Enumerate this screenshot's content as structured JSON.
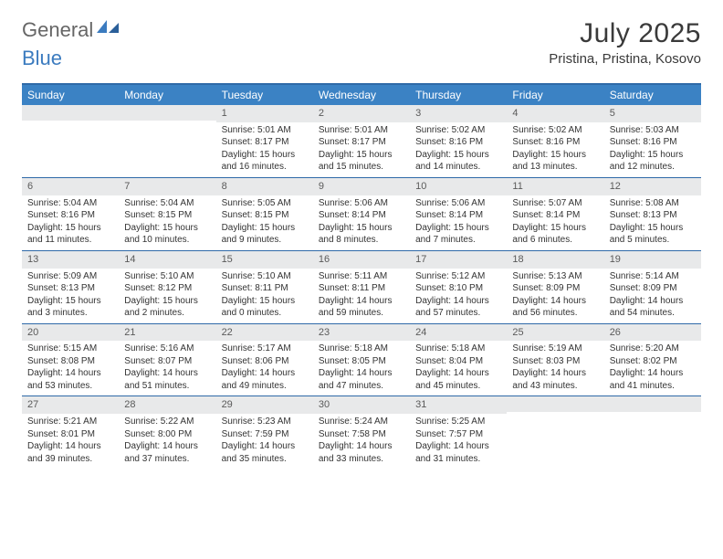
{
  "brand": {
    "part1": "General",
    "part2": "Blue"
  },
  "title": "July 2025",
  "location": "Pristina, Pristina, Kosovo",
  "colors": {
    "header_bg": "#3b82c4",
    "header_text": "#ffffff",
    "border": "#2f6aa8",
    "daynum_bg": "#e8e9ea",
    "text": "#333333",
    "brand_gray": "#666666",
    "brand_blue": "#3b7bbf"
  },
  "weekdays": [
    "Sunday",
    "Monday",
    "Tuesday",
    "Wednesday",
    "Thursday",
    "Friday",
    "Saturday"
  ],
  "weeks": [
    [
      {
        "n": "",
        "sunrise": "",
        "sunset": "",
        "daylight": ""
      },
      {
        "n": "",
        "sunrise": "",
        "sunset": "",
        "daylight": ""
      },
      {
        "n": "1",
        "sunrise": "Sunrise: 5:01 AM",
        "sunset": "Sunset: 8:17 PM",
        "daylight": "Daylight: 15 hours and 16 minutes."
      },
      {
        "n": "2",
        "sunrise": "Sunrise: 5:01 AM",
        "sunset": "Sunset: 8:17 PM",
        "daylight": "Daylight: 15 hours and 15 minutes."
      },
      {
        "n": "3",
        "sunrise": "Sunrise: 5:02 AM",
        "sunset": "Sunset: 8:16 PM",
        "daylight": "Daylight: 15 hours and 14 minutes."
      },
      {
        "n": "4",
        "sunrise": "Sunrise: 5:02 AM",
        "sunset": "Sunset: 8:16 PM",
        "daylight": "Daylight: 15 hours and 13 minutes."
      },
      {
        "n": "5",
        "sunrise": "Sunrise: 5:03 AM",
        "sunset": "Sunset: 8:16 PM",
        "daylight": "Daylight: 15 hours and 12 minutes."
      }
    ],
    [
      {
        "n": "6",
        "sunrise": "Sunrise: 5:04 AM",
        "sunset": "Sunset: 8:16 PM",
        "daylight": "Daylight: 15 hours and 11 minutes."
      },
      {
        "n": "7",
        "sunrise": "Sunrise: 5:04 AM",
        "sunset": "Sunset: 8:15 PM",
        "daylight": "Daylight: 15 hours and 10 minutes."
      },
      {
        "n": "8",
        "sunrise": "Sunrise: 5:05 AM",
        "sunset": "Sunset: 8:15 PM",
        "daylight": "Daylight: 15 hours and 9 minutes."
      },
      {
        "n": "9",
        "sunrise": "Sunrise: 5:06 AM",
        "sunset": "Sunset: 8:14 PM",
        "daylight": "Daylight: 15 hours and 8 minutes."
      },
      {
        "n": "10",
        "sunrise": "Sunrise: 5:06 AM",
        "sunset": "Sunset: 8:14 PM",
        "daylight": "Daylight: 15 hours and 7 minutes."
      },
      {
        "n": "11",
        "sunrise": "Sunrise: 5:07 AM",
        "sunset": "Sunset: 8:14 PM",
        "daylight": "Daylight: 15 hours and 6 minutes."
      },
      {
        "n": "12",
        "sunrise": "Sunrise: 5:08 AM",
        "sunset": "Sunset: 8:13 PM",
        "daylight": "Daylight: 15 hours and 5 minutes."
      }
    ],
    [
      {
        "n": "13",
        "sunrise": "Sunrise: 5:09 AM",
        "sunset": "Sunset: 8:13 PM",
        "daylight": "Daylight: 15 hours and 3 minutes."
      },
      {
        "n": "14",
        "sunrise": "Sunrise: 5:10 AM",
        "sunset": "Sunset: 8:12 PM",
        "daylight": "Daylight: 15 hours and 2 minutes."
      },
      {
        "n": "15",
        "sunrise": "Sunrise: 5:10 AM",
        "sunset": "Sunset: 8:11 PM",
        "daylight": "Daylight: 15 hours and 0 minutes."
      },
      {
        "n": "16",
        "sunrise": "Sunrise: 5:11 AM",
        "sunset": "Sunset: 8:11 PM",
        "daylight": "Daylight: 14 hours and 59 minutes."
      },
      {
        "n": "17",
        "sunrise": "Sunrise: 5:12 AM",
        "sunset": "Sunset: 8:10 PM",
        "daylight": "Daylight: 14 hours and 57 minutes."
      },
      {
        "n": "18",
        "sunrise": "Sunrise: 5:13 AM",
        "sunset": "Sunset: 8:09 PM",
        "daylight": "Daylight: 14 hours and 56 minutes."
      },
      {
        "n": "19",
        "sunrise": "Sunrise: 5:14 AM",
        "sunset": "Sunset: 8:09 PM",
        "daylight": "Daylight: 14 hours and 54 minutes."
      }
    ],
    [
      {
        "n": "20",
        "sunrise": "Sunrise: 5:15 AM",
        "sunset": "Sunset: 8:08 PM",
        "daylight": "Daylight: 14 hours and 53 minutes."
      },
      {
        "n": "21",
        "sunrise": "Sunrise: 5:16 AM",
        "sunset": "Sunset: 8:07 PM",
        "daylight": "Daylight: 14 hours and 51 minutes."
      },
      {
        "n": "22",
        "sunrise": "Sunrise: 5:17 AM",
        "sunset": "Sunset: 8:06 PM",
        "daylight": "Daylight: 14 hours and 49 minutes."
      },
      {
        "n": "23",
        "sunrise": "Sunrise: 5:18 AM",
        "sunset": "Sunset: 8:05 PM",
        "daylight": "Daylight: 14 hours and 47 minutes."
      },
      {
        "n": "24",
        "sunrise": "Sunrise: 5:18 AM",
        "sunset": "Sunset: 8:04 PM",
        "daylight": "Daylight: 14 hours and 45 minutes."
      },
      {
        "n": "25",
        "sunrise": "Sunrise: 5:19 AM",
        "sunset": "Sunset: 8:03 PM",
        "daylight": "Daylight: 14 hours and 43 minutes."
      },
      {
        "n": "26",
        "sunrise": "Sunrise: 5:20 AM",
        "sunset": "Sunset: 8:02 PM",
        "daylight": "Daylight: 14 hours and 41 minutes."
      }
    ],
    [
      {
        "n": "27",
        "sunrise": "Sunrise: 5:21 AM",
        "sunset": "Sunset: 8:01 PM",
        "daylight": "Daylight: 14 hours and 39 minutes."
      },
      {
        "n": "28",
        "sunrise": "Sunrise: 5:22 AM",
        "sunset": "Sunset: 8:00 PM",
        "daylight": "Daylight: 14 hours and 37 minutes."
      },
      {
        "n": "29",
        "sunrise": "Sunrise: 5:23 AM",
        "sunset": "Sunset: 7:59 PM",
        "daylight": "Daylight: 14 hours and 35 minutes."
      },
      {
        "n": "30",
        "sunrise": "Sunrise: 5:24 AM",
        "sunset": "Sunset: 7:58 PM",
        "daylight": "Daylight: 14 hours and 33 minutes."
      },
      {
        "n": "31",
        "sunrise": "Sunrise: 5:25 AM",
        "sunset": "Sunset: 7:57 PM",
        "daylight": "Daylight: 14 hours and 31 minutes."
      },
      {
        "n": "",
        "sunrise": "",
        "sunset": "",
        "daylight": ""
      },
      {
        "n": "",
        "sunrise": "",
        "sunset": "",
        "daylight": ""
      }
    ]
  ]
}
